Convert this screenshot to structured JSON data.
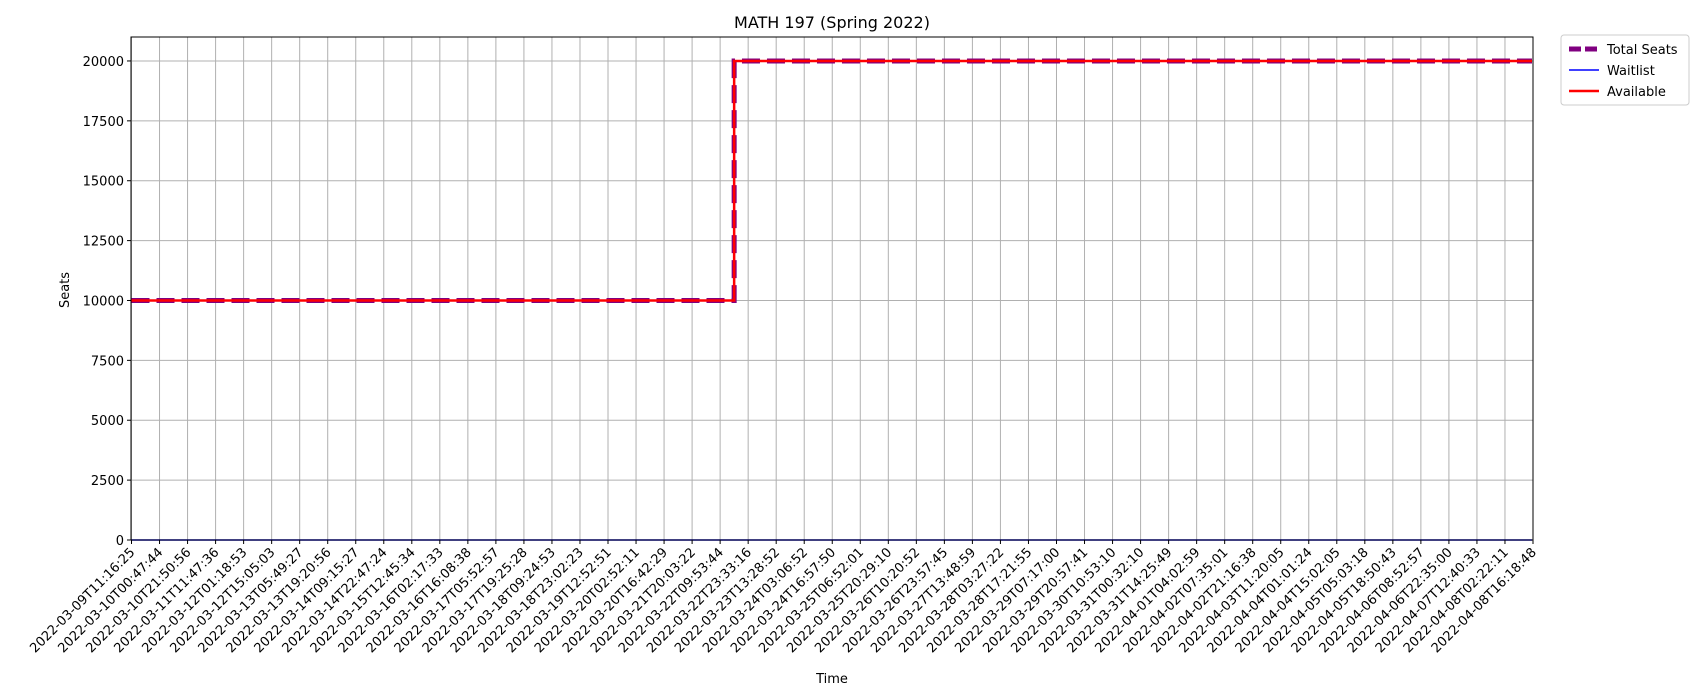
{
  "chart_data": {
    "type": "line",
    "title": "MATH 197 (Spring 2022)",
    "xlabel": "Time",
    "ylabel": "Seats",
    "ylim": [
      0,
      21000
    ],
    "yticks": [
      0,
      2500,
      5000,
      7500,
      10000,
      12500,
      15000,
      17500,
      20000
    ],
    "grid": true,
    "legend_position": "outside-top-right",
    "categories": [
      "2022-03-09T11:16:25",
      "2022-03-10T00:47:44",
      "2022-03-10T21:50:56",
      "2022-03-11T11:47:36",
      "2022-03-12T01:18:53",
      "2022-03-12T15:05:03",
      "2022-03-13T05:49:27",
      "2022-03-13T19:20:56",
      "2022-03-14T09:15:27",
      "2022-03-14T22:47:24",
      "2022-03-15T12:45:34",
      "2022-03-16T02:17:33",
      "2022-03-16T16:08:38",
      "2022-03-17T05:52:57",
      "2022-03-17T19:25:28",
      "2022-03-18T09:24:53",
      "2022-03-18T23:02:23",
      "2022-03-19T12:52:51",
      "2022-03-20T02:52:11",
      "2022-03-20T16:42:29",
      "2022-03-21T20:03:22",
      "2022-03-22T09:53:44",
      "2022-03-22T23:33:16",
      "2022-03-23T13:28:52",
      "2022-03-24T03:06:52",
      "2022-03-24T16:57:50",
      "2022-03-25T06:52:01",
      "2022-03-25T20:29:10",
      "2022-03-26T10:20:52",
      "2022-03-26T23:57:45",
      "2022-03-27T13:48:59",
      "2022-03-28T03:27:22",
      "2022-03-28T17:21:55",
      "2022-03-29T07:17:00",
      "2022-03-29T20:57:41",
      "2022-03-30T10:53:10",
      "2022-03-31T00:32:10",
      "2022-03-31T14:25:49",
      "2022-04-01T04:02:59",
      "2022-04-02T07:35:01",
      "2022-04-02T21:16:38",
      "2022-04-03T11:20:05",
      "2022-04-04T01:01:24",
      "2022-04-04T15:02:05",
      "2022-04-05T05:03:18",
      "2022-04-05T18:50:43",
      "2022-04-06T08:52:57",
      "2022-04-06T22:35:00",
      "2022-04-07T12:40:33",
      "2022-04-08T02:22:11",
      "2022-04-08T16:18:48"
    ],
    "step_index": 21.5,
    "series": [
      {
        "name": "Total Seats",
        "color": "#800080",
        "style": "dashed",
        "before": 10000,
        "after": 20000
      },
      {
        "name": "Waitlist",
        "color": "#0000ff",
        "style": "solid",
        "before": 0,
        "after": 0
      },
      {
        "name": "Available",
        "color": "#ff0000",
        "style": "solid",
        "before": 10000,
        "after": 20000
      }
    ]
  }
}
